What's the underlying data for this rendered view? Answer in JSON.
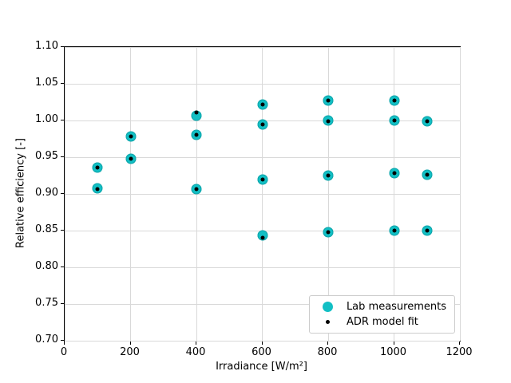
{
  "figure": {
    "background": "#ffffff",
    "axes_color": "#000000",
    "grid_color": "#d9d9d9"
  },
  "chart_data": {
    "type": "scatter",
    "title": "",
    "xlabel": "Irradiance [W/m²]",
    "ylabel": "Relative efficiency [-]",
    "xlim": [
      0,
      1200
    ],
    "ylim": [
      0.7,
      1.1
    ],
    "xticks": [
      0,
      200,
      400,
      600,
      800,
      1000,
      1200
    ],
    "yticks": [
      0.7,
      0.75,
      0.8,
      0.85,
      0.9,
      0.95,
      1.0,
      1.05,
      1.1
    ],
    "grid": true,
    "legend_position": "lower right",
    "series": [
      {
        "name": "Lab measurements",
        "marker": "circle",
        "color": "#12bfc4",
        "marker_size": 13,
        "points": [
          [
            100,
            0.936
          ],
          [
            100,
            0.908
          ],
          [
            200,
            0.978
          ],
          [
            200,
            0.948
          ],
          [
            400,
            1.007
          ],
          [
            400,
            0.98
          ],
          [
            400,
            0.907
          ],
          [
            600,
            1.022
          ],
          [
            600,
            0.995
          ],
          [
            600,
            0.92
          ],
          [
            600,
            0.843
          ],
          [
            800,
            1.027
          ],
          [
            800,
            1.0
          ],
          [
            800,
            0.925
          ],
          [
            800,
            0.848
          ],
          [
            1000,
            1.027
          ],
          [
            1000,
            1.0
          ],
          [
            1000,
            0.928
          ],
          [
            1000,
            0.85
          ],
          [
            1100,
            0.999
          ],
          [
            1100,
            0.926
          ],
          [
            1100,
            0.85
          ]
        ]
      },
      {
        "name": "ADR model fit",
        "marker": "circle",
        "color": "#000000",
        "marker_size": 5,
        "points": [
          [
            100,
            0.936
          ],
          [
            100,
            0.907
          ],
          [
            200,
            0.978
          ],
          [
            200,
            0.948
          ],
          [
            400,
            1.011
          ],
          [
            400,
            0.98
          ],
          [
            400,
            0.906
          ],
          [
            600,
            1.022
          ],
          [
            600,
            0.995
          ],
          [
            600,
            0.92
          ],
          [
            600,
            0.84
          ],
          [
            800,
            1.027
          ],
          [
            800,
            0.999
          ],
          [
            800,
            0.925
          ],
          [
            800,
            0.848
          ],
          [
            1000,
            1.027
          ],
          [
            1000,
            1.0
          ],
          [
            1000,
            0.928
          ],
          [
            1000,
            0.85
          ],
          [
            1100,
            0.999
          ],
          [
            1100,
            0.926
          ],
          [
            1100,
            0.85
          ]
        ]
      }
    ]
  }
}
